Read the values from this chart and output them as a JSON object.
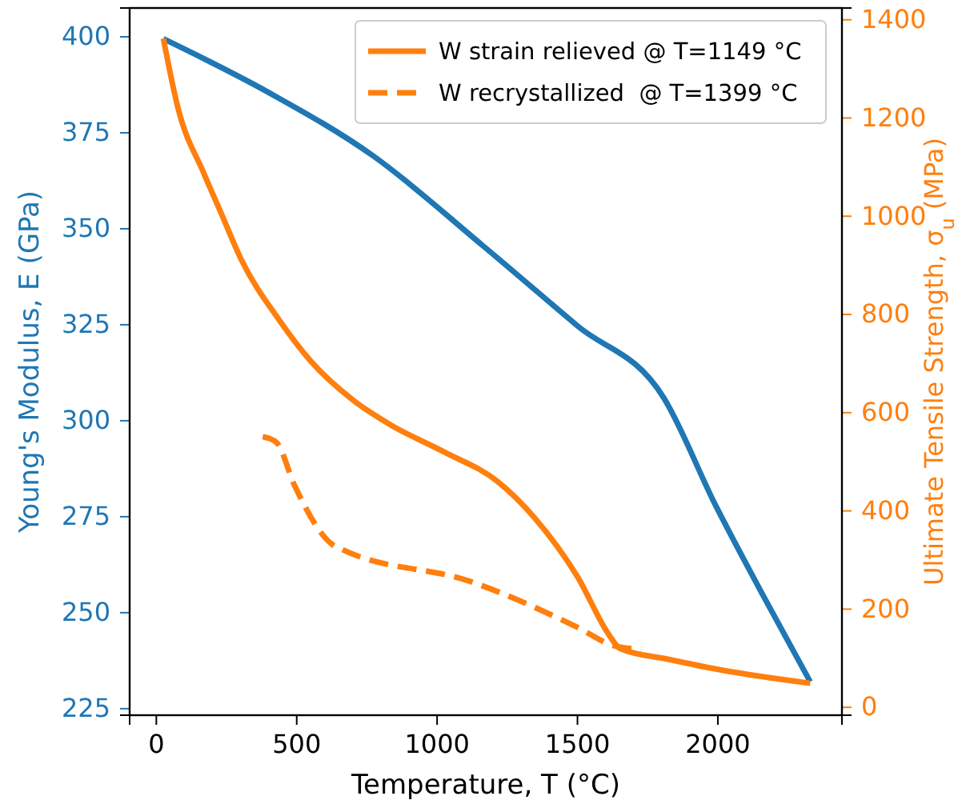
{
  "chart_data": {
    "type": "line",
    "xlabel": "Temperature, T (°C)",
    "ylabel": "Young's Modulus, E (GPa)",
    "y2label": "Ultimate Tensile Strength, σ$_{u}$ (MPa)",
    "xlim": [
      -95,
      2442
    ],
    "xticks": [
      0,
      500,
      1000,
      1500,
      2000
    ],
    "ylim": [
      223.3,
      407.5
    ],
    "yticks": [
      225,
      250,
      275,
      300,
      325,
      350,
      375,
      400
    ],
    "y2lim": [
      -16,
      1424
    ],
    "y2ticks": [
      0,
      200,
      400,
      600,
      800,
      1000,
      1200,
      1400
    ],
    "legend": "top right",
    "grid": false,
    "series": [
      {
        "color": "#1f77b4",
        "line_style": "solid",
        "x": [
          25,
          400,
          772,
          1158,
          1500,
          1807,
          1993,
          2150,
          2329
        ],
        "values": [
          399.5,
          385.5,
          369,
          345.9,
          324.7,
          306,
          277.8,
          256,
          232
        ]
      },
      {
        "name": "W strain relieved @ T=1149 °C",
        "axis": "y2",
        "color": "#ff7f0e",
        "line_style": "solid",
        "x": [
          25,
          76,
          171,
          228,
          304,
          436,
          550,
          702,
          835,
          1025,
          1215,
          1347,
          1500,
          1613,
          1651,
          1822,
          2012,
          2329
        ],
        "values": [
          1362,
          1223,
          1085,
          1010,
          910,
          790,
          705,
          625,
          575,
          520,
          460,
          386,
          266,
          147,
          120,
          98,
          76,
          49
        ]
      },
      {
        "name": "W recrystallized  @ T=1399 °C",
        "axis": "y2",
        "color": "#ff7f0e",
        "line_style": "dashed",
        "x": [
          379,
          427,
          493,
          626,
          664,
          1120,
          1500,
          1632,
          1727
        ],
        "values": [
          551,
          540,
          451,
          332,
          321,
          256,
          163,
          125,
          118
        ]
      }
    ]
  }
}
